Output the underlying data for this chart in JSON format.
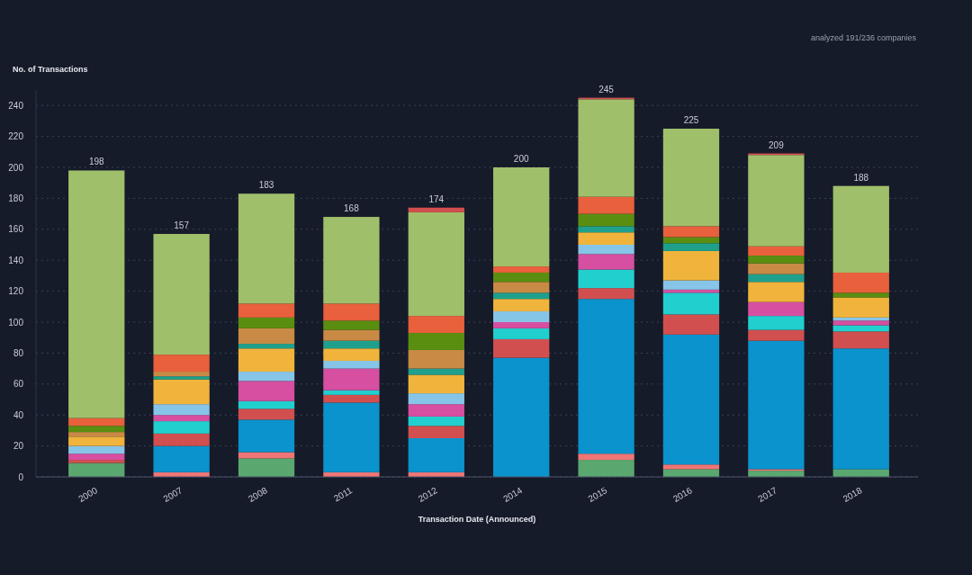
{
  "chart_data": {
    "type": "bar",
    "stacked": true,
    "xlabel": "Transaction Date (Announced)",
    "ylabel": "No. of Transactions",
    "annotations": [
      "analyzed 191/236 companies"
    ],
    "categories": [
      "2000",
      "2007",
      "2008",
      "2011",
      "2012",
      "2014",
      "2015",
      "2016",
      "2017",
      "2018"
    ],
    "ylim": [
      0,
      250
    ],
    "yticks": [
      0,
      20,
      40,
      60,
      80,
      100,
      120,
      140,
      160,
      180,
      200,
      220,
      240
    ],
    "grid": "y",
    "totals": [
      "198",
      "157",
      "183",
      "168",
      "174",
      "200",
      "245",
      "225",
      "209",
      "188"
    ],
    "series": [
      {
        "color": "#5aa86f",
        "values": [
          9,
          0,
          12,
          0,
          0,
          0,
          11,
          5,
          4,
          5
        ]
      },
      {
        "color": "#f07575",
        "values": [
          0,
          3,
          4,
          3,
          3,
          0,
          4,
          3,
          1,
          0
        ]
      },
      {
        "color": "#0a93cc",
        "values": [
          0,
          17,
          21,
          45,
          22,
          77,
          100,
          84,
          83,
          78
        ]
      },
      {
        "color": "#d24f4f",
        "values": [
          2,
          8,
          7,
          5,
          8,
          12,
          7,
          13,
          7,
          11
        ]
      },
      {
        "color": "#22cfcf",
        "values": [
          0,
          8,
          5,
          3,
          6,
          7,
          12,
          14,
          9,
          4
        ]
      },
      {
        "color": "#d64fa0",
        "values": [
          4,
          4,
          13,
          14,
          8,
          4,
          10,
          2,
          9,
          3
        ]
      },
      {
        "color": "#86c5e8",
        "values": [
          5,
          7,
          6,
          5,
          7,
          7,
          6,
          6,
          0,
          2
        ]
      },
      {
        "color": "#f0b43c",
        "values": [
          6,
          16,
          15,
          8,
          12,
          8,
          8,
          19,
          13,
          13
        ]
      },
      {
        "color": "#1fa08c",
        "values": [
          0,
          2,
          3,
          5,
          4,
          4,
          4,
          5,
          5,
          0
        ]
      },
      {
        "color": "#c98a45",
        "values": [
          3,
          3,
          10,
          7,
          12,
          7,
          0,
          0,
          7,
          0
        ]
      },
      {
        "color": "#5a8e10",
        "values": [
          4,
          0,
          7,
          6,
          11,
          6,
          8,
          4,
          5,
          3
        ]
      },
      {
        "color": "#e8603c",
        "values": [
          5,
          11,
          9,
          11,
          11,
          4,
          11,
          7,
          6,
          13
        ]
      },
      {
        "color": "#a0bf6a",
        "values": [
          160,
          78,
          71,
          56,
          67,
          64,
          63,
          63,
          59,
          56
        ]
      },
      {
        "color": "#d24f4f",
        "values": [
          0,
          0,
          0,
          0,
          3,
          0,
          1,
          0,
          1,
          0
        ]
      }
    ]
  }
}
